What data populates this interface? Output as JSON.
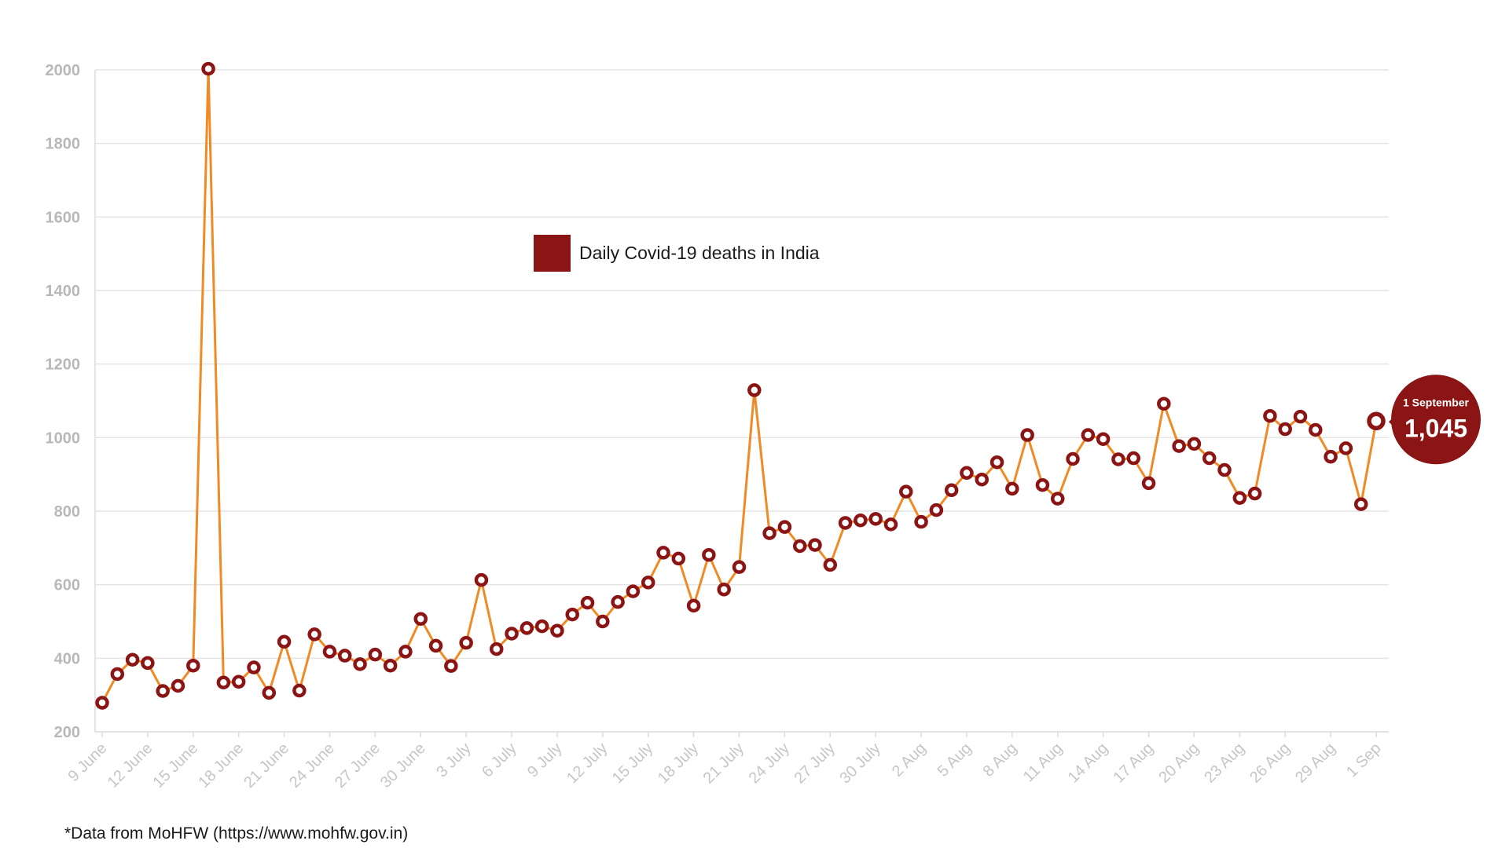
{
  "chart_data": {
    "type": "line",
    "title": "",
    "xlabel": "",
    "ylabel": "",
    "ylim": [
      200,
      2000
    ],
    "yticks": [
      200,
      400,
      600,
      800,
      1000,
      1200,
      1400,
      1600,
      1800,
      2000
    ],
    "grid": true,
    "legend": {
      "placement": "center-top",
      "entries": [
        "Daily Covid-19 deaths in India"
      ]
    },
    "x_tick_labels": [
      "9 June",
      "12 June",
      "15 June",
      "18 June",
      "21 June",
      "24 June",
      "27 June",
      "30 June",
      "3 July",
      "6 July",
      "9 July",
      "12 July",
      "15 July",
      "18 July",
      "21 July",
      "24 July",
      "27 July",
      "30 July",
      "2 Aug",
      "5 Aug",
      "8 Aug",
      "11 Aug",
      "14 Aug",
      "17 Aug",
      "20 Aug",
      "23 Aug",
      "26 Aug",
      "29 Aug",
      "1 Sep"
    ],
    "series": [
      {
        "name": "Daily Covid-19 deaths in India",
        "color": "#f08a24",
        "marker_color": "#8b1414",
        "values": [
          279,
          357,
          396,
          387,
          311,
          325,
          380,
          2003,
          334,
          336,
          375,
          306,
          445,
          312,
          465,
          418,
          407,
          384,
          410,
          380,
          418,
          507,
          434,
          379,
          442,
          613,
          425,
          467,
          482,
          487,
          475,
          519,
          551,
          500,
          553,
          582,
          606,
          687,
          671,
          543,
          681,
          587,
          648,
          1129,
          740,
          757,
          705,
          708,
          654,
          768,
          775,
          779,
          764,
          853,
          771,
          803,
          857,
          904,
          886,
          933,
          861,
          1007,
          871,
          834,
          942,
          1007,
          996,
          941,
          944,
          876,
          1092,
          977,
          983,
          944,
          912,
          836,
          848,
          1059,
          1023,
          1057,
          1021,
          948,
          971,
          819,
          1045
        ]
      }
    ],
    "callout": {
      "label": "1 September",
      "value": "1,045",
      "color": "#8b1414"
    }
  },
  "footer": {
    "source": "*Data from MoHFW (https://www.mohfw.gov.in)"
  }
}
